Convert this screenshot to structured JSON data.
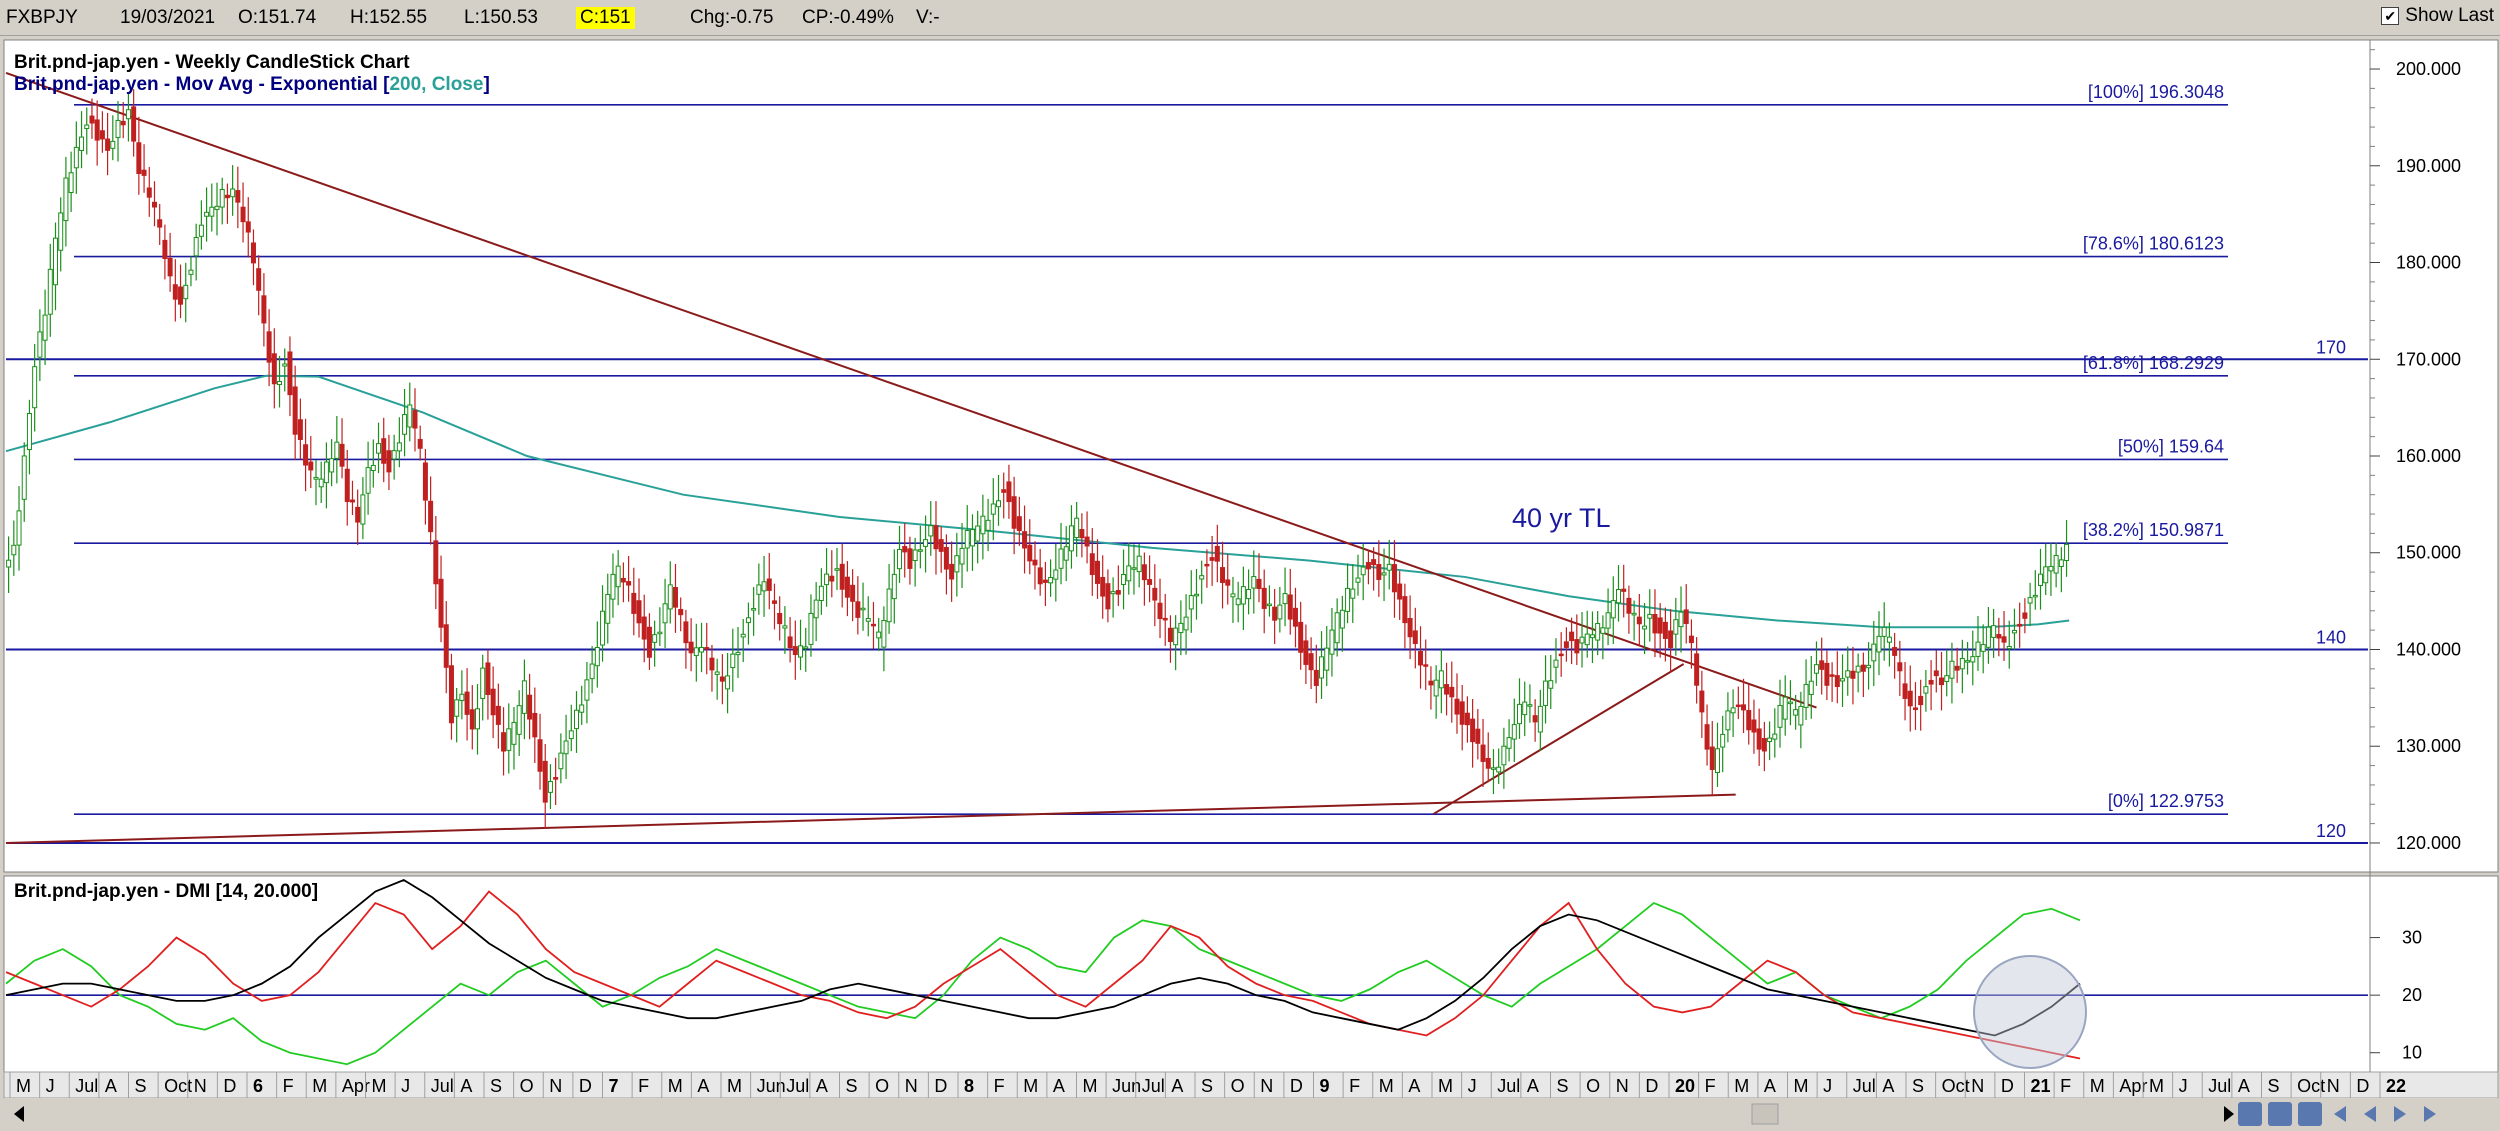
{
  "toolbar": {
    "symbol": "FXBPJY",
    "date": "19/03/2021",
    "open": "O:151.74",
    "high": "H:152.55",
    "low": "L:150.53",
    "close": "C:151",
    "change": "Chg:-0.75",
    "change_pct": "CP:-0.49%",
    "volume": "V:-",
    "show_last_label": "Show Last",
    "show_last_checked": "✔"
  },
  "price_panel": {
    "legend_line1": "Brit.pnd-jap.yen - Weekly CandleStick Chart",
    "legend_line2_prefix": "Brit.pnd-jap.yen - Mov Avg - Exponential [",
    "legend_line2_params": "200, Close",
    "legend_line2_suffix": "]",
    "annotation": "40 yr TL"
  },
  "dmi_panel": {
    "legend": "Brit.pnd-jap.yen - DMI [14, 20.000]"
  },
  "colors": {
    "plus_di": "#22cc22",
    "minus_di": "#e02020",
    "adx": "#000000",
    "ema": "#2aa198",
    "trendline": "#8b1a1a",
    "horizontal": "#1a1aa0",
    "fib": "#1a1aa0",
    "candle_up": "#1a8f1a",
    "candle_down": "#c02020"
  },
  "chart_data": [
    {
      "type": "candlestick",
      "ylim": [
        117,
        203
      ],
      "y_ticks": [
        "120.000",
        "130.000",
        "140.000",
        "150.000",
        "160.000",
        "170.000",
        "180.000",
        "190.000",
        "200.000"
      ],
      "y_tick_values": [
        120,
        130,
        140,
        150,
        160,
        170,
        180,
        190,
        200
      ],
      "x_labels": [
        "M",
        "J",
        "Jul",
        "A",
        "S",
        "Oct",
        "N",
        "D",
        "6",
        "F",
        "M",
        "Apr",
        "M",
        "J",
        "Jul",
        "A",
        "S",
        "O",
        "N",
        "D",
        "7",
        "F",
        "M",
        "A",
        "M",
        "Jun",
        "Jul",
        "A",
        "S",
        "O",
        "N",
        "D",
        "8",
        "F",
        "M",
        "A",
        "M",
        "Jun",
        "Jul",
        "A",
        "S",
        "O",
        "N",
        "D",
        "9",
        "F",
        "M",
        "A",
        "M",
        "J",
        "Jul",
        "A",
        "S",
        "O",
        "N",
        "D",
        "20",
        "F",
        "M",
        "A",
        "M",
        "J",
        "Jul",
        "A",
        "S",
        "Oct",
        "N",
        "D",
        "21",
        "F",
        "M",
        "Apr",
        "M",
        "J",
        "Jul",
        "A",
        "S",
        "Oct",
        "N",
        "D",
        "22"
      ],
      "fibonacci_levels": [
        {
          "label": "[100%] 196.3048",
          "value": 196.3048
        },
        {
          "label": "[78.6%] 180.6123",
          "value": 180.6123
        },
        {
          "label": "[61.8%] 168.2929",
          "value": 168.2929
        },
        {
          "label": "[50%] 159.64",
          "value": 159.64
        },
        {
          "label": "[38.2%] 150.9871",
          "value": 150.9871
        },
        {
          "label": "[0%] 122.9753",
          "value": 122.9753
        }
      ],
      "horizontal_lines": [
        {
          "label": "170",
          "value": 170
        },
        {
          "label": "140",
          "value": 140
        },
        {
          "label": "120",
          "value": 120
        }
      ],
      "price_path": [
        [
          0,
          148
        ],
        [
          4,
          150
        ],
        [
          8,
          160
        ],
        [
          12,
          170
        ],
        [
          16,
          175
        ],
        [
          20,
          182
        ],
        [
          24,
          188
        ],
        [
          28,
          192
        ],
        [
          32,
          195
        ],
        [
          36,
          193
        ],
        [
          40,
          191
        ],
        [
          44,
          194
        ],
        [
          48,
          196
        ],
        [
          52,
          190
        ],
        [
          56,
          187
        ],
        [
          60,
          183
        ],
        [
          64,
          178
        ],
        [
          68,
          176
        ],
        [
          72,
          180
        ],
        [
          76,
          184
        ],
        [
          80,
          185
        ],
        [
          84,
          187
        ],
        [
          88,
          188
        ],
        [
          92,
          185
        ],
        [
          96,
          180
        ],
        [
          100,
          173
        ],
        [
          104,
          167
        ],
        [
          108,
          170
        ],
        [
          112,
          163
        ],
        [
          116,
          159
        ],
        [
          120,
          157
        ],
        [
          124,
          159
        ],
        [
          128,
          162
        ],
        [
          132,
          156
        ],
        [
          136,
          153
        ],
        [
          140,
          158
        ],
        [
          144,
          161
        ],
        [
          148,
          159
        ],
        [
          152,
          162
        ],
        [
          156,
          165
        ],
        [
          160,
          160
        ],
        [
          164,
          152
        ],
        [
          168,
          143
        ],
        [
          172,
          133
        ],
        [
          176,
          135
        ],
        [
          180,
          131
        ],
        [
          184,
          138
        ],
        [
          188,
          134
        ],
        [
          192,
          130
        ],
        [
          196,
          132
        ],
        [
          200,
          136
        ],
        [
          204,
          131
        ],
        [
          208,
          125
        ],
        [
          212,
          127
        ],
        [
          216,
          130
        ],
        [
          220,
          133
        ],
        [
          224,
          137
        ],
        [
          228,
          141
        ],
        [
          232,
          146
        ],
        [
          236,
          148
        ],
        [
          240,
          146
        ],
        [
          244,
          143
        ],
        [
          248,
          140
        ],
        [
          252,
          142
        ],
        [
          256,
          146
        ],
        [
          260,
          143
        ],
        [
          264,
          140
        ],
        [
          268,
          141
        ],
        [
          272,
          138
        ],
        [
          276,
          136
        ],
        [
          280,
          139
        ],
        [
          284,
          142
        ],
        [
          288,
          145
        ],
        [
          292,
          147
        ],
        [
          296,
          144
        ],
        [
          300,
          142
        ],
        [
          304,
          140
        ],
        [
          308,
          141
        ],
        [
          312,
          145
        ],
        [
          316,
          147
        ],
        [
          320,
          148
        ],
        [
          324,
          146
        ],
        [
          328,
          144
        ],
        [
          332,
          143
        ],
        [
          336,
          141
        ],
        [
          340,
          146
        ],
        [
          344,
          151
        ],
        [
          348,
          149
        ],
        [
          352,
          150
        ],
        [
          356,
          152
        ],
        [
          360,
          150
        ],
        [
          364,
          148
        ],
        [
          368,
          151
        ],
        [
          372,
          152
        ],
        [
          376,
          153
        ],
        [
          380,
          155
        ],
        [
          384,
          157
        ],
        [
          388,
          153
        ],
        [
          392,
          150
        ],
        [
          396,
          148
        ],
        [
          400,
          147
        ],
        [
          404,
          149
        ],
        [
          408,
          151
        ],
        [
          412,
          153
        ],
        [
          416,
          150
        ],
        [
          420,
          147
        ],
        [
          424,
          145
        ],
        [
          428,
          146
        ],
        [
          432,
          148
        ],
        [
          436,
          149
        ],
        [
          440,
          147
        ],
        [
          444,
          144
        ],
        [
          448,
          141
        ],
        [
          452,
          142
        ],
        [
          456,
          145
        ],
        [
          460,
          148
        ],
        [
          464,
          150
        ],
        [
          468,
          147
        ],
        [
          472,
          145
        ],
        [
          476,
          146
        ],
        [
          480,
          148
        ],
        [
          484,
          145
        ],
        [
          488,
          143
        ],
        [
          492,
          145
        ],
        [
          496,
          142
        ],
        [
          500,
          139
        ],
        [
          504,
          137
        ],
        [
          508,
          140
        ],
        [
          512,
          143
        ],
        [
          516,
          146
        ],
        [
          520,
          148
        ],
        [
          524,
          149
        ],
        [
          528,
          147
        ],
        [
          532,
          148
        ],
        [
          536,
          145
        ],
        [
          540,
          142
        ],
        [
          544,
          139
        ],
        [
          548,
          136
        ],
        [
          552,
          137
        ],
        [
          556,
          135
        ],
        [
          560,
          133
        ],
        [
          564,
          131
        ],
        [
          568,
          128
        ],
        [
          572,
          127
        ],
        [
          576,
          130
        ],
        [
          580,
          133
        ],
        [
          584,
          135
        ],
        [
          588,
          132
        ],
        [
          592,
          136
        ],
        [
          596,
          139
        ],
        [
          600,
          141
        ],
        [
          604,
          140
        ],
        [
          608,
          141
        ],
        [
          612,
          142
        ],
        [
          616,
          144
        ],
        [
          620,
          147
        ],
        [
          624,
          144
        ],
        [
          628,
          142
        ],
        [
          632,
          143
        ],
        [
          636,
          142
        ],
        [
          640,
          141
        ],
        [
          644,
          144
        ],
        [
          648,
          140
        ],
        [
          652,
          133
        ],
        [
          656,
          128
        ],
        [
          660,
          132
        ],
        [
          664,
          134
        ],
        [
          668,
          133
        ],
        [
          672,
          131
        ],
        [
          676,
          130
        ],
        [
          680,
          132
        ],
        [
          684,
          135
        ],
        [
          688,
          133
        ],
        [
          692,
          136
        ],
        [
          696,
          139
        ],
        [
          700,
          137
        ],
        [
          704,
          136
        ],
        [
          708,
          137
        ],
        [
          712,
          138
        ],
        [
          716,
          139
        ],
        [
          720,
          142
        ],
        [
          724,
          141
        ],
        [
          728,
          137
        ],
        [
          732,
          134
        ],
        [
          736,
          135
        ],
        [
          740,
          137
        ],
        [
          744,
          136
        ],
        [
          748,
          138
        ],
        [
          752,
          139
        ],
        [
          756,
          140
        ],
        [
          760,
          141
        ],
        [
          764,
          142
        ],
        [
          768,
          140
        ],
        [
          772,
          142
        ],
        [
          776,
          144
        ],
        [
          780,
          146
        ],
        [
          784,
          148
        ],
        [
          788,
          149
        ],
        [
          792,
          151
        ]
      ]
    },
    {
      "type": "line",
      "title": "Brit.pnd-jap.yen - DMI [14, 20.000]",
      "ylim": [
        7,
        40
      ],
      "y_ticks": [
        "10",
        "20",
        "30"
      ],
      "y_tick_values": [
        10,
        20,
        30
      ],
      "reference_line": 20,
      "series": [
        {
          "name": "+DI",
          "values": [
            22,
            26,
            28,
            25,
            20,
            18,
            15,
            14,
            16,
            12,
            10,
            9,
            8,
            10,
            14,
            18,
            22,
            20,
            24,
            26,
            22,
            18,
            20,
            23,
            25,
            28,
            26,
            24,
            22,
            20,
            18,
            17,
            16,
            20,
            26,
            30,
            28,
            25,
            24,
            30,
            33,
            32,
            28,
            26,
            24,
            22,
            20,
            19,
            21,
            24,
            26,
            23,
            20,
            18,
            22,
            25,
            28,
            32,
            36,
            34,
            30,
            26,
            22,
            24,
            20,
            18,
            16,
            18,
            21,
            26,
            30,
            34,
            35,
            33
          ]
        },
        {
          "name": "-DI",
          "values": [
            24,
            22,
            20,
            18,
            21,
            25,
            30,
            27,
            22,
            19,
            20,
            24,
            30,
            36,
            34,
            28,
            32,
            38,
            34,
            28,
            24,
            22,
            20,
            18,
            22,
            26,
            24,
            22,
            20,
            19,
            17,
            16,
            18,
            22,
            25,
            28,
            24,
            20,
            18,
            22,
            26,
            32,
            30,
            25,
            22,
            20,
            19,
            17,
            15,
            14,
            13,
            16,
            20,
            26,
            32,
            36,
            28,
            22,
            18,
            17,
            18,
            22,
            26,
            24,
            20,
            17,
            16,
            15,
            14,
            13,
            12,
            11,
            10,
            9
          ]
        },
        {
          "name": "ADX",
          "values": [
            20,
            21,
            22,
            22,
            21,
            20,
            19,
            19,
            20,
            22,
            25,
            30,
            34,
            38,
            40,
            37,
            33,
            29,
            26,
            23,
            21,
            19,
            18,
            17,
            16,
            16,
            17,
            18,
            19,
            21,
            22,
            21,
            20,
            19,
            18,
            17,
            16,
            16,
            17,
            18,
            20,
            22,
            23,
            22,
            20,
            19,
            17,
            16,
            15,
            14,
            16,
            19,
            23,
            28,
            32,
            34,
            33,
            31,
            29,
            27,
            25,
            23,
            21,
            20,
            19,
            18,
            17,
            16,
            15,
            14,
            13,
            15,
            18,
            22
          ]
        }
      ]
    }
  ]
}
